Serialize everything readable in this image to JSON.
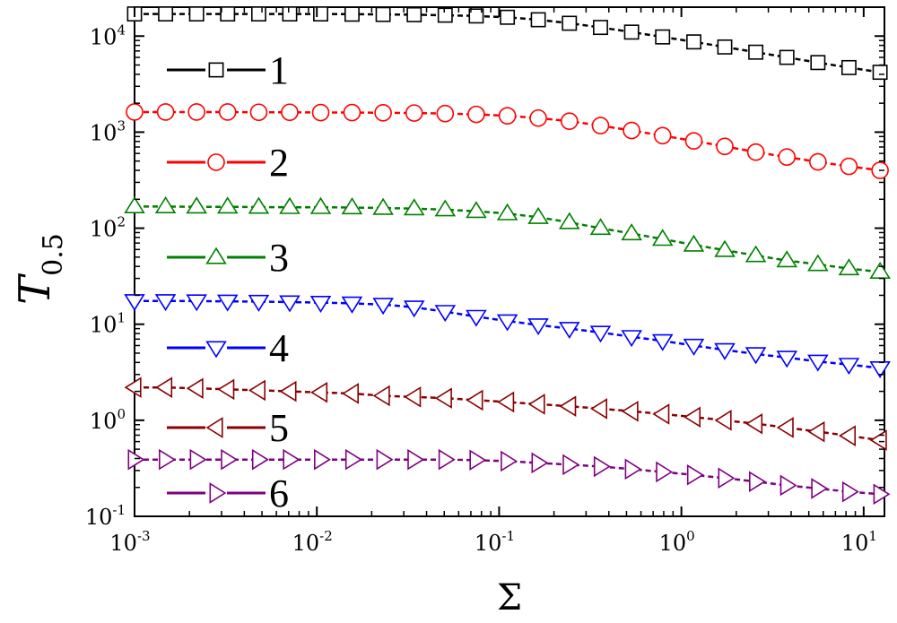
{
  "chart_data": {
    "type": "line",
    "xlabel": "Σ",
    "ylabel": "T",
    "ylabel_sub": "0.5",
    "x_scale": "log",
    "y_scale": "log",
    "xlim": [
      0.001,
      13
    ],
    "ylim": [
      0.1,
      20000
    ],
    "x_ticks": [
      {
        "value": 0.001,
        "base": "10",
        "exp": "-3"
      },
      {
        "value": 0.01,
        "base": "10",
        "exp": "-2"
      },
      {
        "value": 0.1,
        "base": "10",
        "exp": "-1"
      },
      {
        "value": 1,
        "base": "10",
        "exp": "0"
      },
      {
        "value": 10,
        "base": "10",
        "exp": "1"
      }
    ],
    "y_ticks": [
      {
        "value": 0.1,
        "base": "10",
        "exp": "-1"
      },
      {
        "value": 1,
        "base": "10",
        "exp": "0"
      },
      {
        "value": 10,
        "base": "10",
        "exp": "1"
      },
      {
        "value": 100,
        "base": "10",
        "exp": "2"
      },
      {
        "value": 1000,
        "base": "10",
        "exp": "3"
      },
      {
        "value": 10000,
        "base": "10",
        "exp": "4"
      }
    ],
    "x": [
      0.001,
      0.00148,
      0.00219,
      0.00324,
      0.0048,
      0.0071,
      0.0105,
      0.0156,
      0.0231,
      0.0342,
      0.0506,
      0.0749,
      0.111,
      0.164,
      0.243,
      0.36,
      0.533,
      0.789,
      1.17,
      1.73,
      2.56,
      3.79,
      5.61,
      8.3,
      12.3
    ],
    "series": [
      {
        "name": "1",
        "color": "#000000",
        "marker": "square",
        "values": [
          17000,
          17000,
          17000,
          17000,
          17000,
          17000,
          17000,
          16900,
          16800,
          16700,
          16500,
          16200,
          15700,
          14800,
          13600,
          12300,
          11000,
          9800,
          8700,
          7700,
          6800,
          6000,
          5300,
          4700,
          4200
        ]
      },
      {
        "name": "2",
        "color": "#ff0000",
        "marker": "circle",
        "values": [
          1620,
          1620,
          1620,
          1620,
          1610,
          1610,
          1600,
          1600,
          1590,
          1580,
          1560,
          1530,
          1480,
          1400,
          1300,
          1170,
          1040,
          920,
          810,
          710,
          620,
          550,
          490,
          440,
          400
        ]
      },
      {
        "name": "3",
        "color": "#008000",
        "marker": "triangle-up",
        "values": [
          168,
          168,
          167,
          167,
          166,
          165,
          165,
          164,
          162,
          160,
          156,
          150,
          142,
          130,
          115,
          100,
          88,
          77,
          67,
          59,
          52,
          46,
          42,
          38,
          35
        ]
      },
      {
        "name": "4",
        "color": "#0000ff",
        "marker": "triangle-down",
        "values": [
          17.5,
          17.5,
          17.4,
          17.3,
          17.2,
          17.0,
          16.8,
          16.5,
          16.0,
          15.0,
          13.5,
          12.0,
          10.8,
          9.8,
          9.0,
          8.2,
          7.4,
          6.7,
          6.0,
          5.4,
          4.9,
          4.5,
          4.1,
          3.8,
          3.5
        ]
      },
      {
        "name": "5",
        "color": "#8b0000",
        "marker": "triangle-left",
        "values": [
          2.2,
          2.2,
          2.15,
          2.1,
          2.05,
          2.0,
          1.95,
          1.9,
          1.8,
          1.75,
          1.7,
          1.62,
          1.55,
          1.47,
          1.4,
          1.32,
          1.24,
          1.16,
          1.08,
          1.0,
          0.92,
          0.84,
          0.76,
          0.69,
          0.62
        ]
      },
      {
        "name": "6",
        "color": "#800080",
        "marker": "triangle-right",
        "values": [
          0.39,
          0.39,
          0.39,
          0.39,
          0.39,
          0.39,
          0.39,
          0.39,
          0.39,
          0.39,
          0.39,
          0.385,
          0.375,
          0.36,
          0.345,
          0.33,
          0.31,
          0.29,
          0.27,
          0.25,
          0.23,
          0.21,
          0.195,
          0.18,
          0.17
        ]
      }
    ],
    "legend_placement": "left, one entry above each curve",
    "grid": false
  }
}
